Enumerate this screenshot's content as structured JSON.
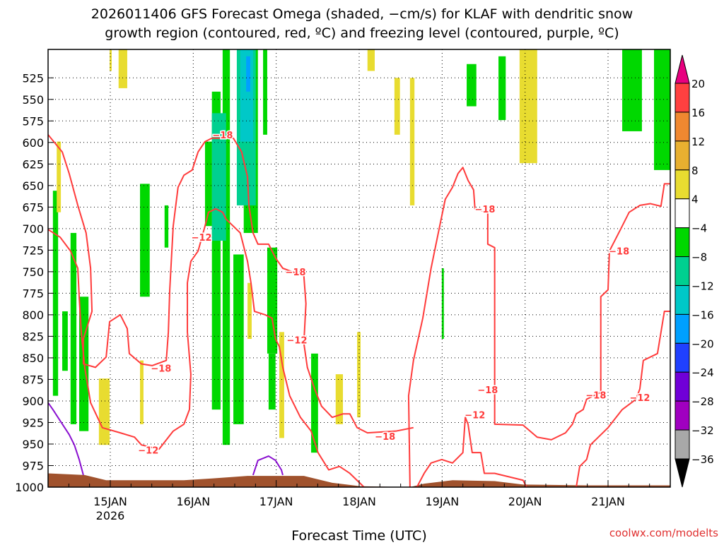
{
  "chart_data": {
    "type": "heatmap",
    "title_lines": [
      "2026011406 GFS Forecast Omega (shaded, −cm/s) for KLAF with dendritic snow",
      "growth region (contoured, red, ºC) and freezing level (contoured, purple, ºC)"
    ],
    "xlabel": "Forecast Time (UTC)",
    "credit": "coolwx.com/modelts",
    "x_units": "hours since 2026-01-14 06Z",
    "xlim": [
      0,
      180
    ],
    "ylim": [
      492,
      1000
    ],
    "y_axis": "pressure (hPa), inverted",
    "grid": true,
    "x_ticks": [
      {
        "h": 18,
        "label": "15JAN",
        "sub": "2026"
      },
      {
        "h": 42,
        "label": "16JAN"
      },
      {
        "h": 66,
        "label": "17JAN"
      },
      {
        "h": 90,
        "label": "18JAN"
      },
      {
        "h": 114,
        "label": "19JAN"
      },
      {
        "h": 138,
        "label": "20JAN"
      },
      {
        "h": 162,
        "label": "21JAN"
      }
    ],
    "y_ticks": [
      "525",
      "550",
      "575",
      "600",
      "625",
      "650",
      "675",
      "700",
      "725",
      "750",
      "775",
      "800",
      "825",
      "850",
      "875",
      "900",
      "925",
      "950",
      "975",
      "1000"
    ],
    "colorbar": {
      "labels": [
        "20",
        "16",
        "12",
        "8",
        "4",
        "-4",
        "-8",
        "-12",
        "-16",
        "-20",
        "-24",
        "-28",
        "-32",
        "-36"
      ],
      "top_arrow_color": "#e8007f",
      "bottom_arrow_color": "#000000",
      "colors": [
        "#ff4040",
        "#f08830",
        "#e8b030",
        "#e8dc30",
        "#ffffff",
        "#00d800",
        "#00d090",
        "#00c8c8",
        "#00a0ff",
        "#2040ff",
        "#7000d8",
        "#a000c0",
        "#a8a8a8"
      ]
    },
    "shading_colors": {
      "6": "#e8dc30",
      "-6": "#00d800",
      "-10": "#00d090",
      "-14": "#00c8c8",
      "-18": "#00a0ff"
    },
    "shading": [
      [
        1.4,
        2.9,
        656,
        894,
        -6
      ],
      [
        4.1,
        5.7,
        796,
        865,
        -6
      ],
      [
        6.5,
        8.2,
        705,
        927,
        -6
      ],
      [
        9,
        11.7,
        779,
        935,
        -6
      ],
      [
        26.6,
        29.4,
        648,
        779,
        -6
      ],
      [
        33.7,
        34.8,
        673,
        722,
        -6
      ],
      [
        45.4,
        47.4,
        599,
        697,
        -6
      ],
      [
        47.4,
        49.9,
        541,
        910,
        -6
      ],
      [
        50.5,
        52.6,
        492,
        951,
        -6
      ],
      [
        53.6,
        56.6,
        730,
        927,
        -6
      ],
      [
        56.6,
        60.7,
        492,
        705,
        -6
      ],
      [
        62.2,
        63.4,
        492,
        591,
        -6
      ],
      [
        63.4,
        66.3,
        722,
        845,
        -6
      ],
      [
        63.8,
        65.8,
        845,
        910,
        -6
      ],
      [
        47.4,
        51.5,
        566,
        714,
        -10
      ],
      [
        54.6,
        60.1,
        492,
        673,
        -10
      ],
      [
        55.6,
        59.3,
        492,
        599,
        -14
      ],
      [
        57.3,
        58.5,
        500,
        541,
        -18
      ],
      [
        76.1,
        78.1,
        845,
        960,
        -6
      ],
      [
        113.9,
        114.5,
        746,
        828,
        -6
      ],
      [
        121.1,
        123.9,
        509,
        558,
        -6
      ],
      [
        130.3,
        132.4,
        500,
        574,
        -6
      ],
      [
        166.1,
        171.8,
        492,
        587,
        -6
      ],
      [
        175.3,
        180,
        492,
        632,
        -6
      ],
      [
        14.7,
        17.8,
        874,
        951,
        6
      ],
      [
        26.6,
        27.6,
        853,
        927,
        6
      ],
      [
        20.4,
        22.9,
        492,
        537,
        6
      ],
      [
        17.8,
        18.4,
        492,
        517,
        6
      ],
      [
        57.7,
        58.9,
        763,
        828,
        6
      ],
      [
        66.9,
        68.3,
        820,
        943,
        6
      ],
      [
        83.2,
        85.3,
        869,
        927,
        6
      ],
      [
        89.4,
        90.4,
        820,
        919,
        6
      ],
      [
        92.4,
        94.5,
        492,
        517,
        6
      ],
      [
        100.2,
        101.8,
        525,
        591,
        6
      ],
      [
        104.7,
        106,
        525,
        673,
        6
      ],
      [
        136.4,
        141.5,
        492,
        624,
        6
      ],
      [
        2.5,
        3.7,
        599,
        681,
        6
      ]
    ],
    "terrain": {
      "color": "#a0522d",
      "surface_pressure": [
        [
          0,
          984
        ],
        [
          10.6,
          986
        ],
        [
          16.8,
          992
        ],
        [
          39.3,
          992
        ],
        [
          47.4,
          990
        ],
        [
          57.7,
          987
        ],
        [
          74,
          987
        ],
        [
          82.2,
          995
        ],
        [
          90.4,
          999
        ],
        [
          104.7,
          1000
        ],
        [
          108.8,
          996
        ],
        [
          117,
          992
        ],
        [
          129.2,
          993
        ],
        [
          137.4,
          997
        ],
        [
          155.8,
          998
        ],
        [
          180,
          998
        ]
      ]
    },
    "dgz_contours": {
      "color": "#ff3b3b",
      "lines": [
        {
          "value": -12,
          "points": [
            [
              0,
              701
            ],
            [
              3.5,
              710
            ],
            [
              6.5,
              726
            ],
            [
              8.6,
              746
            ],
            [
              9,
              779
            ],
            [
              9.6,
              820
            ],
            [
              10.6,
              861
            ],
            [
              12.3,
              902
            ],
            [
              15.7,
              931
            ],
            [
              20.9,
              937
            ],
            [
              25,
              942
            ],
            [
              27,
              951
            ],
            [
              32.1,
              956
            ],
            [
              36.2,
              935
            ],
            [
              39.3,
              927
            ],
            [
              40.9,
              910
            ],
            [
              41.3,
              869
            ],
            [
              40.3,
              820
            ],
            [
              40.3,
              763
            ],
            [
              41.3,
              738
            ],
            [
              43.4,
              726
            ],
            [
              45.4,
              697
            ],
            [
              46.4,
              681
            ],
            [
              48.5,
              677
            ],
            [
              50.5,
              681
            ],
            [
              51.5,
              689
            ],
            [
              55.6,
              705
            ],
            [
              57.7,
              738
            ],
            [
              58.7,
              763
            ],
            [
              59.7,
              796
            ],
            [
              62.8,
              800
            ],
            [
              64.8,
              804
            ],
            [
              65.8,
              828
            ],
            [
              66.9,
              837
            ],
            [
              67.9,
              861
            ],
            [
              69.9,
              894
            ],
            [
              73,
              919
            ],
            [
              76.1,
              935
            ],
            [
              78.1,
              960
            ],
            [
              81.2,
              980
            ],
            [
              84.3,
              976
            ],
            [
              87.3,
              984
            ],
            [
              91.4,
              1000
            ]
          ]
        },
        {
          "value": -18,
          "points": [
            [
              0,
              591
            ],
            [
              4.1,
              611
            ],
            [
              6.1,
              636
            ],
            [
              8.6,
              673
            ],
            [
              11,
              705
            ],
            [
              12.3,
              746
            ],
            [
              12.7,
              796
            ],
            [
              10.2,
              828
            ],
            [
              10.2,
              857
            ],
            [
              13.7,
              861
            ],
            [
              16.8,
              849
            ],
            [
              17.8,
              808
            ],
            [
              20.9,
              800
            ],
            [
              22.9,
              816
            ],
            [
              23.5,
              845
            ],
            [
              27,
              857
            ],
            [
              30.1,
              859
            ],
            [
              34.2,
              853
            ],
            [
              34.8,
              820
            ],
            [
              35.2,
              771
            ],
            [
              36.2,
              697
            ],
            [
              37.6,
              652
            ],
            [
              39.3,
              638
            ],
            [
              41.7,
              632
            ],
            [
              43.4,
              611
            ],
            [
              45.4,
              599
            ],
            [
              47.4,
              595
            ],
            [
              53.6,
              595
            ],
            [
              56,
              611
            ],
            [
              57.7,
              640
            ],
            [
              58.1,
              673
            ],
            [
              59.3,
              705
            ],
            [
              60.7,
              718
            ],
            [
              63.8,
              718
            ],
            [
              65.8,
              734
            ],
            [
              67.9,
              746
            ],
            [
              74,
              755
            ],
            [
              74.6,
              787
            ],
            [
              74,
              833
            ],
            [
              75,
              861
            ],
            [
              77.1,
              886
            ],
            [
              79.1,
              906
            ],
            [
              82.2,
              919
            ],
            [
              85.3,
              915
            ],
            [
              87.3,
              915
            ],
            [
              89.4,
              931
            ],
            [
              92.4,
              937
            ],
            [
              100.6,
              935
            ],
            [
              105.7,
              931
            ]
          ]
        },
        {
          "value": -18,
          "points": [
            [
              104.7,
              1000
            ],
            [
              104.3,
              894
            ],
            [
              105.7,
              853
            ],
            [
              108.4,
              804
            ],
            [
              110.8,
              746
            ],
            [
              113.3,
              697
            ],
            [
              114.9,
              666
            ],
            [
              117,
              652
            ],
            [
              118.6,
              636
            ],
            [
              120,
              629
            ],
            [
              121.5,
              644
            ],
            [
              123.1,
              655
            ],
            [
              123.5,
              677
            ],
            [
              127.2,
              681
            ],
            [
              127.2,
              718
            ],
            [
              129.2,
              722
            ],
            [
              129.2,
              845
            ],
            [
              129.2,
              927
            ],
            [
              137.4,
              928
            ],
            [
              141.5,
              942
            ],
            [
              145.6,
              945
            ],
            [
              149.7,
              937
            ],
            [
              151.7,
              927
            ],
            [
              152.8,
              915
            ],
            [
              154.8,
              910
            ],
            [
              155.8,
              898
            ],
            [
              159.9,
              890
            ],
            [
              159.9,
              779
            ],
            [
              162,
              771
            ],
            [
              162.4,
              726
            ],
            [
              165.6,
              701
            ],
            [
              168.1,
              681
            ],
            [
              171.2,
              673
            ],
            [
              174.2,
              671
            ],
            [
              177.3,
              674
            ],
            [
              178.3,
              648
            ],
            [
              180,
              648
            ]
          ]
        },
        {
          "value": -12,
          "points": [
            [
              106.7,
              1000
            ],
            [
              108.8,
              984
            ],
            [
              110.8,
              972
            ],
            [
              113.9,
              968
            ],
            [
              117,
              972
            ],
            [
              120,
              960
            ],
            [
              120.7,
              919
            ],
            [
              121.5,
              927
            ],
            [
              122.7,
              960
            ],
            [
              125.2,
              960
            ],
            [
              126.2,
              984
            ],
            [
              129.2,
              984
            ],
            [
              137.4,
              992
            ],
            [
              138.4,
              1000
            ]
          ]
        },
        {
          "value": -12,
          "points": [
            [
              152.8,
              1000
            ],
            [
              153.8,
              976
            ],
            [
              155.8,
              968
            ],
            [
              156.9,
              951
            ],
            [
              162,
              931
            ],
            [
              166.1,
              910
            ],
            [
              170.1,
              898
            ],
            [
              171.2,
              886
            ],
            [
              172.2,
              853
            ],
            [
              176.3,
              845
            ],
            [
              178.3,
              796
            ],
            [
              180,
              796
            ]
          ]
        }
      ],
      "labels": [
        {
          "text": "-18",
          "h": 50.5,
          "p": 591
        },
        {
          "text": "-18",
          "h": 32.7,
          "p": 862
        },
        {
          "text": "-18",
          "h": 71.6,
          "p": 750
        },
        {
          "text": "-18",
          "h": 97.5,
          "p": 941
        },
        {
          "text": "-18",
          "h": 126.4,
          "p": 677
        },
        {
          "text": "-18",
          "h": 127.2,
          "p": 887
        },
        {
          "text": "-18",
          "h": 158.5,
          "p": 893
        },
        {
          "text": "-18",
          "h": 165.2,
          "p": 726
        },
        {
          "text": "-12",
          "h": 44.4,
          "p": 710
        },
        {
          "text": "-12",
          "h": 29,
          "p": 957
        },
        {
          "text": "-12",
          "h": 72,
          "p": 829
        },
        {
          "text": "-12",
          "h": 123.5,
          "p": 916
        },
        {
          "text": "-12",
          "h": 171.2,
          "p": 896
        }
      ]
    },
    "freezing_contours": {
      "color": "#8a10d0",
      "lines": [
        {
          "value": 0,
          "points": [
            [
              0,
              902
            ],
            [
              1.4,
              910
            ],
            [
              3.5,
              923
            ],
            [
              6.1,
              939
            ],
            [
              7.6,
              951
            ],
            [
              9,
              968
            ],
            [
              10.2,
              986
            ]
          ]
        },
        {
          "value": 0,
          "points": [
            [
              59.3,
              986
            ],
            [
              60.7,
              969
            ],
            [
              63.8,
              964
            ],
            [
              65.8,
              969
            ],
            [
              67.5,
              980
            ],
            [
              67.9,
              986
            ]
          ]
        }
      ]
    }
  }
}
